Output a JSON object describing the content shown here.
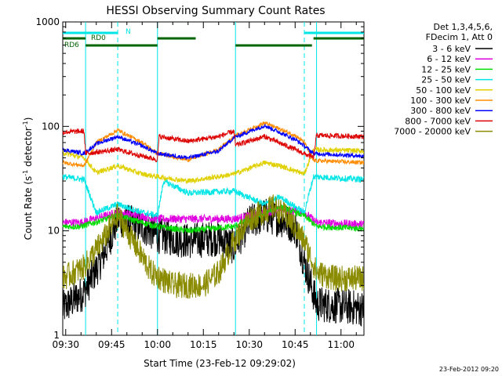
{
  "chart_data": {
    "type": "line",
    "title": "HESSI Observing Summary Count Rates",
    "xlabel": "Start Time (23-Feb-12 09:29:02)",
    "ylabel_main": "Count Rate (s",
    "ylabel_sup1": "-1",
    "ylabel_mid": " detector",
    "ylabel_sup2": "-1",
    "ylabel_end": ")",
    "yscale": "log",
    "ylim": [
      1,
      1000
    ],
    "xlim": [
      "09:29:02",
      "11:07:30"
    ],
    "x_ticks": [
      "09:30",
      "09:45",
      "10:00",
      "10:15",
      "10:30",
      "10:45",
      "11:00"
    ],
    "y_ticks": [
      "1",
      "10",
      "100",
      "1000"
    ],
    "legend_header": [
      "Det 1,3,4,5,6,",
      "FDecim 1, Att 0"
    ],
    "legend_position": "right",
    "timestamp": "23-Feb-2012 09:20",
    "flags": [
      {
        "label": "N",
        "color": "#00e5e5",
        "segments": [
          [
            "09:29:02",
            "09:47:00"
          ],
          [
            "10:48:00",
            "11:07:30"
          ]
        ]
      },
      {
        "label": "RD0",
        "color": "#006400",
        "segments": [
          [
            "09:29:02",
            "09:36:30"
          ],
          [
            "10:00:00",
            "10:12:30"
          ],
          [
            "10:51:00",
            "11:07:30"
          ]
        ]
      },
      {
        "label": "RD6",
        "color": "#006400",
        "segments": [
          [
            "09:36:30",
            "10:00:00"
          ],
          [
            "10:25:30",
            "10:50:30"
          ]
        ]
      }
    ],
    "night_boundaries": [
      "09:47:00",
      "10:48:00"
    ],
    "saa_boundaries": [
      "09:36:30",
      "10:00:00",
      "10:25:30",
      "10:52:00"
    ],
    "series": [
      {
        "name": "3 - 6 keV",
        "color": "#000000",
        "keypoints": [
          [
            "09:29:02",
            1.8
          ],
          [
            "09:36:00",
            2.6
          ],
          [
            "09:42:00",
            5.5
          ],
          [
            "09:47:00",
            13
          ],
          [
            "09:55:00",
            11
          ],
          [
            "10:00:00",
            9
          ],
          [
            "10:10:00",
            8
          ],
          [
            "10:20:00",
            8.5
          ],
          [
            "10:25:00",
            7
          ],
          [
            "10:30:00",
            12
          ],
          [
            "10:35:00",
            14
          ],
          [
            "10:40:00",
            13
          ],
          [
            "10:45:00",
            11
          ],
          [
            "10:48:00",
            5
          ],
          [
            "10:52:00",
            2
          ],
          [
            "11:07:30",
            1.8
          ]
        ]
      },
      {
        "name": "6 - 12 keV",
        "color": "#e000e0",
        "keypoints": [
          [
            "09:29:02",
            12
          ],
          [
            "09:35:00",
            12
          ],
          [
            "09:47:00",
            15
          ],
          [
            "10:00:00",
            13
          ],
          [
            "10:10:00",
            13
          ],
          [
            "10:25:00",
            13
          ],
          [
            "10:40:00",
            16
          ],
          [
            "10:48:00",
            15
          ],
          [
            "10:52:00",
            12
          ],
          [
            "11:07:30",
            11.5
          ]
        ]
      },
      {
        "name": "12 - 25 keV",
        "color": "#00dd00",
        "keypoints": [
          [
            "09:29:02",
            11
          ],
          [
            "09:35:00",
            11
          ],
          [
            "09:47:00",
            14
          ],
          [
            "09:55:00",
            12
          ],
          [
            "10:00:00",
            11
          ],
          [
            "10:10:00",
            10
          ],
          [
            "10:25:00",
            11
          ],
          [
            "10:40:00",
            17
          ],
          [
            "10:48:00",
            14
          ],
          [
            "10:52:00",
            11
          ],
          [
            "11:07:30",
            10.5
          ]
        ]
      },
      {
        "name": "25 - 50 keV",
        "color": "#00e5e5",
        "keypoints": [
          [
            "09:29:02",
            33
          ],
          [
            "09:36:00",
            31
          ],
          [
            "09:40:00",
            15
          ],
          [
            "09:47:00",
            18
          ],
          [
            "09:55:00",
            15
          ],
          [
            "10:00:00",
            14
          ],
          [
            "10:02:00",
            30
          ],
          [
            "10:10:00",
            23
          ],
          [
            "10:25:00",
            24
          ],
          [
            "10:35:00",
            18
          ],
          [
            "10:40:00",
            21
          ],
          [
            "10:48:00",
            15
          ],
          [
            "10:51:00",
            33
          ],
          [
            "11:07:30",
            31
          ]
        ]
      },
      {
        "name": "50 - 100 keV",
        "color": "#e0d000",
        "keypoints": [
          [
            "09:29:02",
            56
          ],
          [
            "09:36:00",
            50
          ],
          [
            "09:40:00",
            36
          ],
          [
            "09:47:00",
            42
          ],
          [
            "09:55:00",
            35
          ],
          [
            "10:00:00",
            33
          ],
          [
            "10:10:00",
            30
          ],
          [
            "10:20:00",
            33
          ],
          [
            "10:25:00",
            35
          ],
          [
            "10:35:00",
            45
          ],
          [
            "10:40:00",
            42
          ],
          [
            "10:48:00",
            35
          ],
          [
            "10:51:00",
            60
          ],
          [
            "11:07:30",
            58
          ]
        ]
      },
      {
        "name": "100 - 300 keV",
        "color": "#ff8c00",
        "keypoints": [
          [
            "09:29:02",
            45
          ],
          [
            "09:36:00",
            42
          ],
          [
            "09:40:00",
            70
          ],
          [
            "09:47:00",
            92
          ],
          [
            "09:55:00",
            70
          ],
          [
            "10:00:00",
            55
          ],
          [
            "10:10:00",
            48
          ],
          [
            "10:20:00",
            60
          ],
          [
            "10:25:00",
            80
          ],
          [
            "10:35:00",
            108
          ],
          [
            "10:45:00",
            82
          ],
          [
            "10:48:00",
            70
          ],
          [
            "10:51:00",
            47
          ],
          [
            "11:07:30",
            45
          ]
        ]
      },
      {
        "name": "300 - 800 keV",
        "color": "#0000ff",
        "keypoints": [
          [
            "09:29:02",
            60
          ],
          [
            "09:36:00",
            55
          ],
          [
            "09:40:00",
            68
          ],
          [
            "09:47:00",
            80
          ],
          [
            "09:55:00",
            65
          ],
          [
            "10:00:00",
            55
          ],
          [
            "10:10:00",
            50
          ],
          [
            "10:20:00",
            58
          ],
          [
            "10:25:00",
            78
          ],
          [
            "10:35:00",
            102
          ],
          [
            "10:45:00",
            75
          ],
          [
            "10:48:00",
            65
          ],
          [
            "10:51:00",
            55
          ],
          [
            "11:07:30",
            52
          ]
        ]
      },
      {
        "name": "800 - 7000 keV",
        "color": "#dd0000",
        "keypoints": [
          [
            "09:29:02",
            88
          ],
          [
            "09:36:00",
            90
          ],
          [
            "09:36:30",
            55
          ],
          [
            "09:47:00",
            60
          ],
          [
            "09:55:00",
            52
          ],
          [
            "10:00:00",
            48
          ],
          [
            "10:00:30",
            80
          ],
          [
            "10:10:00",
            72
          ],
          [
            "10:20:00",
            80
          ],
          [
            "10:25:00",
            90
          ],
          [
            "10:25:30",
            66
          ],
          [
            "10:35:00",
            80
          ],
          [
            "10:45:00",
            60
          ],
          [
            "10:51:00",
            50
          ],
          [
            "10:52:00",
            82
          ],
          [
            "11:07:30",
            80
          ]
        ]
      },
      {
        "name": "7000 - 20000 keV",
        "color": "#8b8b00",
        "keypoints": [
          [
            "09:29:02",
            3.5
          ],
          [
            "09:36:00",
            4.5
          ],
          [
            "09:42:00",
            8
          ],
          [
            "09:47:00",
            14
          ],
          [
            "09:52:00",
            8
          ],
          [
            "09:58:00",
            4
          ],
          [
            "10:05:00",
            3
          ],
          [
            "10:15:00",
            3
          ],
          [
            "10:20:00",
            4
          ],
          [
            "10:25:00",
            8
          ],
          [
            "10:30:00",
            13
          ],
          [
            "10:38:00",
            17
          ],
          [
            "10:43:00",
            13
          ],
          [
            "10:48:00",
            8
          ],
          [
            "10:52:00",
            4
          ],
          [
            "10:58:00",
            3.5
          ],
          [
            "11:07:30",
            3.5
          ]
        ]
      }
    ]
  }
}
